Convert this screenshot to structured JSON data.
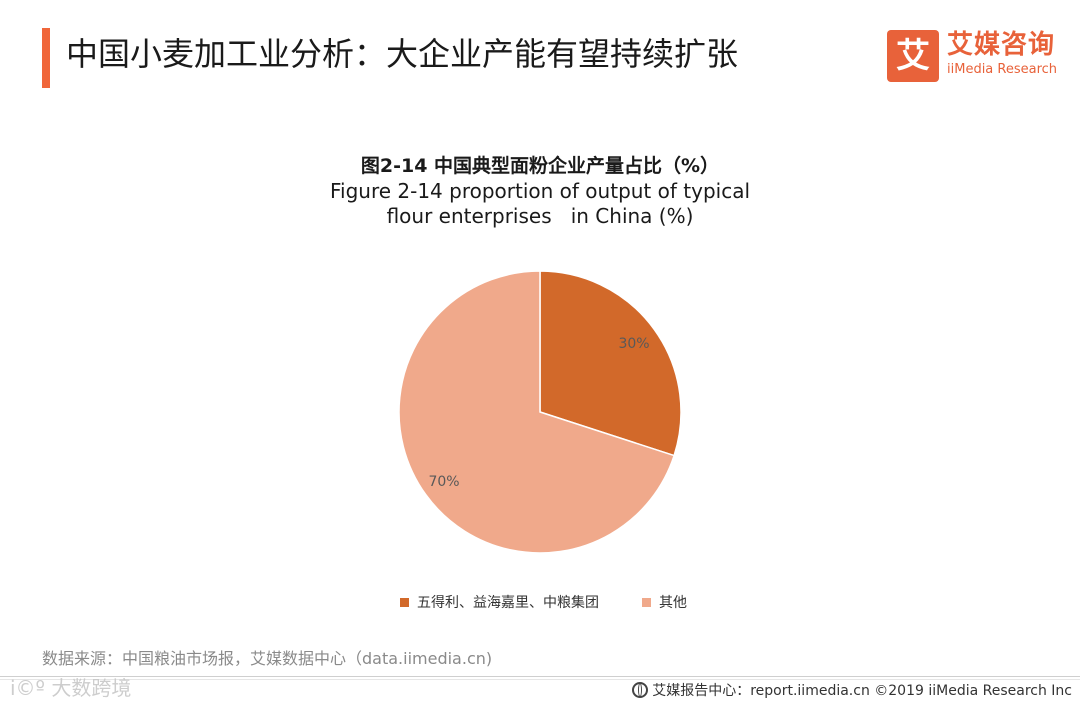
{
  "header": {
    "title": "中国小麦加工业分析：大企业产能有望持续扩张"
  },
  "brand": {
    "logo_char": "艾",
    "name_cn": "艾媒咨询",
    "name_en": "iiMedia Research",
    "color": "#e8623a"
  },
  "chart_data": {
    "type": "pie",
    "title": "图2-14 中国典型面粉企业产量占比（%）",
    "subtitle_line1": "Figure 2-14 proportion of output of typical",
    "subtitle_line2": "flour enterprises   in China (%)",
    "slices": [
      {
        "label": "五得利、益海嘉里、中粮集团",
        "value": 30,
        "display": "30%",
        "color": "#d2692a"
      },
      {
        "label": "其他",
        "value": 70,
        "display": "70%",
        "color": "#f0a98b"
      }
    ],
    "start_angle_deg": 0,
    "direction": "clockwise",
    "legend_position": "bottom"
  },
  "source": {
    "text": "数据来源：中国粮油市场报，艾媒数据中心（data.iimedia.cn)"
  },
  "footer": {
    "watermark": "i©º 大数跨境",
    "credit": "艾媒报告中心：report.iimedia.cn  ©2019  iiMedia Research  Inc"
  }
}
